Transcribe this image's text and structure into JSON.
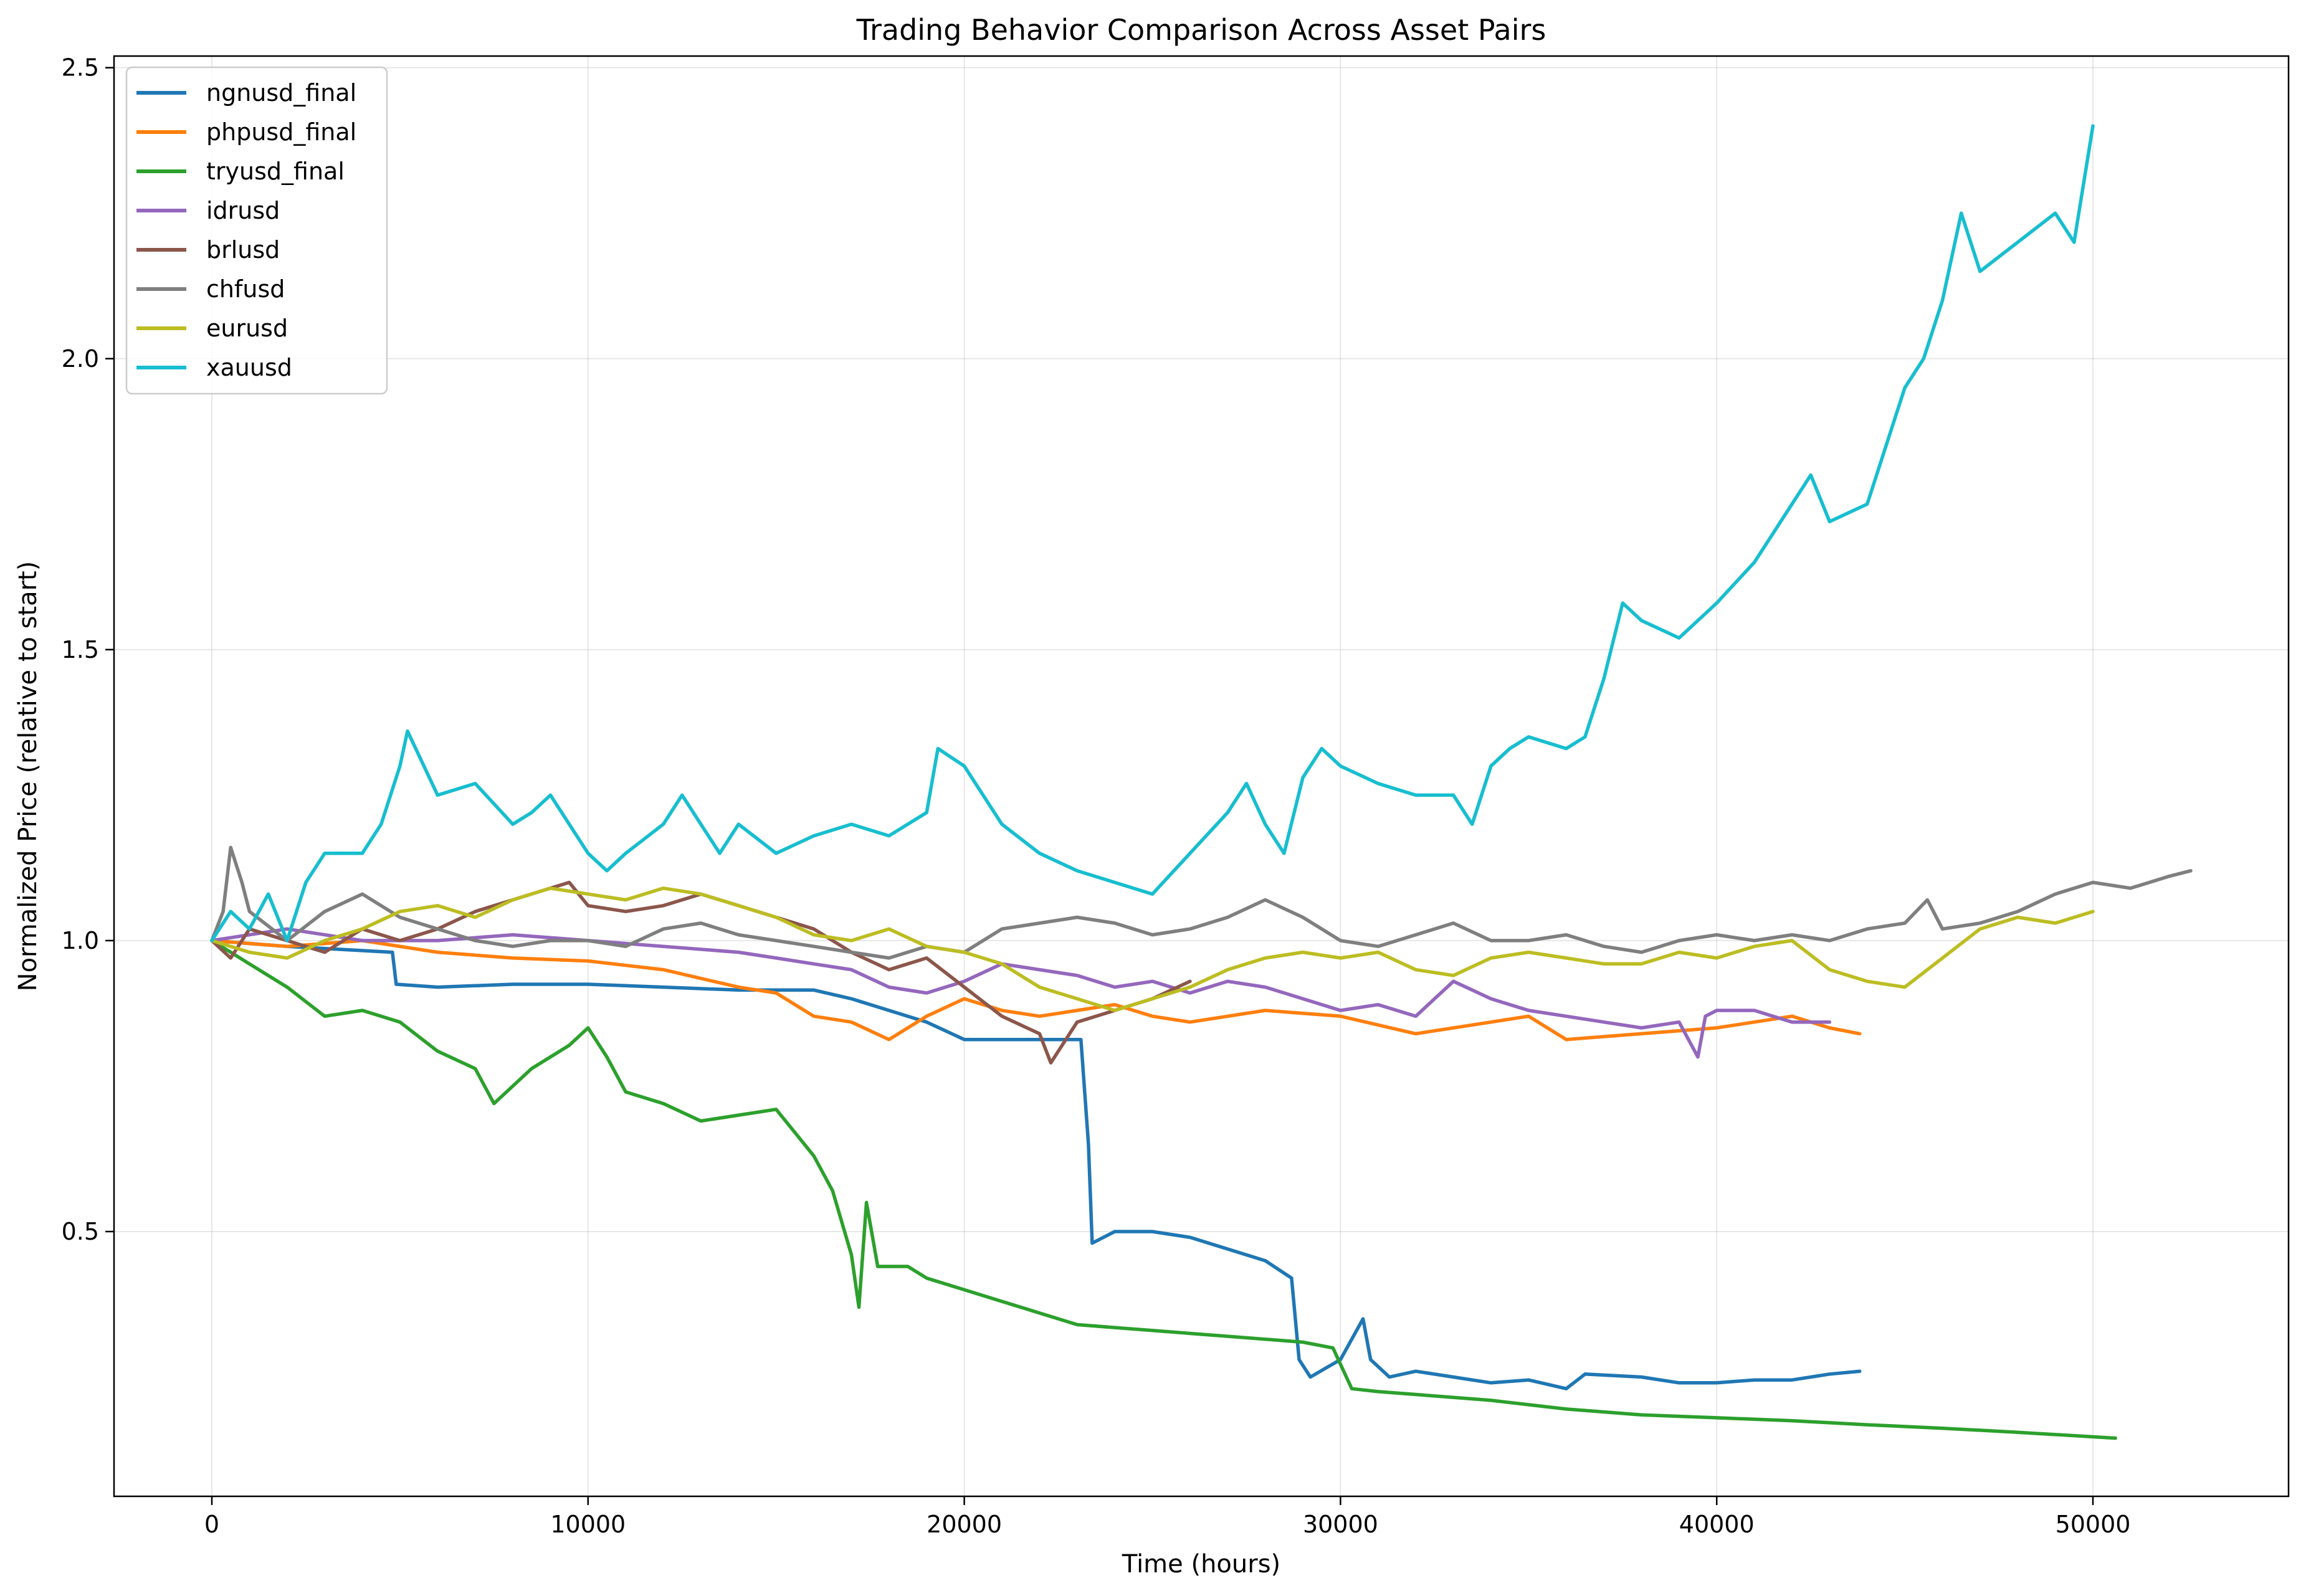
{
  "chart_data": {
    "type": "line",
    "title": "Trading Behavior Comparison Across Asset Pairs",
    "xlabel": "Time (hours)",
    "ylabel": "Normalized Price (relative to start)",
    "xlim": [
      -2600,
      55200
    ],
    "ylim": [
      0.045,
      2.52
    ],
    "xticks": [
      0,
      10000,
      20000,
      30000,
      40000,
      50000
    ],
    "xtick_labels": [
      "0",
      "10000",
      "20000",
      "30000",
      "40000",
      "50000"
    ],
    "yticks": [
      0.5,
      1.0,
      1.5,
      2.0,
      2.5
    ],
    "ytick_labels": [
      "0.5",
      "1.0",
      "1.5",
      "2.0",
      "2.5"
    ],
    "grid": true,
    "legend_position": "top-left",
    "series": [
      {
        "name": "ngnusd_final",
        "color": "#1f77b4",
        "x": [
          0,
          2000,
          4800,
          4900,
          6000,
          8000,
          10000,
          12000,
          14000,
          16000,
          17000,
          19000,
          20000,
          22000,
          23100,
          23300,
          23400,
          24000,
          25000,
          26000,
          27000,
          28000,
          28700,
          28900,
          29200,
          30000,
          30600,
          30800,
          31300,
          32000,
          33000,
          34000,
          35000,
          36000,
          36500,
          38000,
          39000,
          40000,
          41000,
          42000,
          43000,
          43800
        ],
        "y": [
          1.0,
          0.99,
          0.98,
          0.925,
          0.92,
          0.925,
          0.925,
          0.92,
          0.915,
          0.915,
          0.9,
          0.86,
          0.83,
          0.83,
          0.83,
          0.65,
          0.48,
          0.5,
          0.5,
          0.49,
          0.47,
          0.45,
          0.42,
          0.28,
          0.25,
          0.28,
          0.35,
          0.28,
          0.25,
          0.26,
          0.25,
          0.24,
          0.245,
          0.23,
          0.255,
          0.25,
          0.24,
          0.24,
          0.245,
          0.245,
          0.255,
          0.26
        ]
      },
      {
        "name": "phpusd_final",
        "color": "#ff7f0e",
        "x": [
          0,
          2000,
          4000,
          6000,
          8000,
          10000,
          12000,
          14000,
          15000,
          16000,
          17000,
          18000,
          19000,
          20000,
          21000,
          22000,
          23000,
          24000,
          25000,
          26000,
          28000,
          30000,
          32000,
          34000,
          35000,
          36000,
          38000,
          40000,
          41000,
          42000,
          43000,
          43800
        ],
        "y": [
          1.0,
          0.99,
          1.0,
          0.98,
          0.97,
          0.965,
          0.95,
          0.92,
          0.91,
          0.87,
          0.86,
          0.83,
          0.87,
          0.9,
          0.88,
          0.87,
          0.88,
          0.89,
          0.87,
          0.86,
          0.88,
          0.87,
          0.84,
          0.86,
          0.87,
          0.83,
          0.84,
          0.85,
          0.86,
          0.87,
          0.85,
          0.84
        ]
      },
      {
        "name": "tryusd_final",
        "color": "#2ca02c",
        "x": [
          0,
          1000,
          2000,
          3000,
          4000,
          5000,
          6000,
          7000,
          7500,
          8500,
          9500,
          10000,
          10500,
          11000,
          12000,
          13000,
          14000,
          15000,
          16000,
          16500,
          17000,
          17200,
          17400,
          17700,
          18500,
          19000,
          20000,
          21000,
          22000,
          23000,
          25000,
          27000,
          29000,
          29800,
          30300,
          31000,
          32000,
          34000,
          36000,
          38000,
          40000,
          42000,
          44000,
          46000,
          48000,
          50600
        ],
        "y": [
          1.0,
          0.96,
          0.92,
          0.87,
          0.88,
          0.86,
          0.81,
          0.78,
          0.72,
          0.78,
          0.82,
          0.85,
          0.8,
          0.74,
          0.72,
          0.69,
          0.7,
          0.71,
          0.63,
          0.57,
          0.46,
          0.37,
          0.55,
          0.44,
          0.44,
          0.42,
          0.4,
          0.38,
          0.36,
          0.34,
          0.33,
          0.32,
          0.31,
          0.3,
          0.23,
          0.225,
          0.22,
          0.21,
          0.195,
          0.185,
          0.18,
          0.175,
          0.168,
          0.162,
          0.155,
          0.145
        ]
      },
      {
        "name": "idrusd",
        "color": "#9467bd",
        "x": [
          0,
          2000,
          4000,
          6000,
          8000,
          10000,
          12000,
          14000,
          15000,
          16000,
          17000,
          18000,
          19000,
          20000,
          21000,
          22000,
          23000,
          24000,
          25000,
          26000,
          27000,
          28000,
          29000,
          30000,
          31000,
          32000,
          33000,
          34000,
          35000,
          36000,
          37000,
          38000,
          39000,
          39500,
          39700,
          40000,
          41000,
          42000,
          43000
        ],
        "y": [
          1.0,
          1.02,
          1.0,
          1.0,
          1.01,
          1.0,
          0.99,
          0.98,
          0.97,
          0.96,
          0.95,
          0.92,
          0.91,
          0.93,
          0.96,
          0.95,
          0.94,
          0.92,
          0.93,
          0.91,
          0.93,
          0.92,
          0.9,
          0.88,
          0.89,
          0.87,
          0.93,
          0.9,
          0.88,
          0.87,
          0.86,
          0.85,
          0.86,
          0.8,
          0.87,
          0.88,
          0.88,
          0.86,
          0.86
        ]
      },
      {
        "name": "brlusd",
        "color": "#8c564b",
        "x": [
          0,
          500,
          1000,
          2000,
          3000,
          4000,
          5000,
          6000,
          7000,
          8000,
          9000,
          9500,
          10000,
          11000,
          12000,
          13000,
          14000,
          15000,
          16000,
          17000,
          18000,
          19000,
          20000,
          21000,
          22000,
          22300,
          23000,
          24000,
          25000,
          26000
        ],
        "y": [
          1.0,
          0.97,
          1.02,
          1.0,
          0.98,
          1.02,
          1.0,
          1.02,
          1.05,
          1.07,
          1.09,
          1.1,
          1.06,
          1.05,
          1.06,
          1.08,
          1.06,
          1.04,
          1.02,
          0.98,
          0.95,
          0.97,
          0.92,
          0.87,
          0.84,
          0.79,
          0.86,
          0.88,
          0.9,
          0.93
        ]
      },
      {
        "name": "chfusd",
        "color": "#7f7f7f",
        "x": [
          0,
          300,
          500,
          800,
          1000,
          2000,
          3000,
          4000,
          5000,
          6000,
          7000,
          8000,
          9000,
          10000,
          11000,
          12000,
          13000,
          14000,
          15000,
          16000,
          17000,
          18000,
          19000,
          20000,
          21000,
          22000,
          23000,
          24000,
          25000,
          26000,
          27000,
          28000,
          29000,
          30000,
          31000,
          32000,
          33000,
          34000,
          35000,
          36000,
          37000,
          38000,
          39000,
          40000,
          41000,
          42000,
          43000,
          44000,
          45000,
          45600,
          46000,
          47000,
          48000,
          49000,
          50000,
          51000,
          52000,
          52600
        ],
        "y": [
          1.0,
          1.05,
          1.16,
          1.1,
          1.05,
          1.0,
          1.05,
          1.08,
          1.04,
          1.02,
          1.0,
          0.99,
          1.0,
          1.0,
          0.99,
          1.02,
          1.03,
          1.01,
          1.0,
          0.99,
          0.98,
          0.97,
          0.99,
          0.98,
          1.02,
          1.03,
          1.04,
          1.03,
          1.01,
          1.02,
          1.04,
          1.07,
          1.04,
          1.0,
          0.99,
          1.01,
          1.03,
          1.0,
          1.0,
          1.01,
          0.99,
          0.98,
          1.0,
          1.01,
          1.0,
          1.01,
          1.0,
          1.02,
          1.03,
          1.07,
          1.02,
          1.03,
          1.05,
          1.08,
          1.1,
          1.09,
          1.11,
          1.12
        ]
      },
      {
        "name": "eurusd",
        "color": "#bcbd22",
        "x": [
          0,
          1000,
          2000,
          3000,
          4000,
          5000,
          6000,
          7000,
          8000,
          9000,
          10000,
          11000,
          12000,
          13000,
          14000,
          15000,
          16000,
          17000,
          18000,
          19000,
          20000,
          21000,
          22000,
          23000,
          24000,
          25000,
          26000,
          27000,
          28000,
          29000,
          30000,
          31000,
          32000,
          33000,
          34000,
          35000,
          36000,
          37000,
          38000,
          39000,
          40000,
          41000,
          42000,
          43000,
          44000,
          45000,
          46000,
          47000,
          48000,
          49000,
          50000
        ],
        "y": [
          1.0,
          0.98,
          0.97,
          1.0,
          1.02,
          1.05,
          1.06,
          1.04,
          1.07,
          1.09,
          1.08,
          1.07,
          1.09,
          1.08,
          1.06,
          1.04,
          1.01,
          1.0,
          1.02,
          0.99,
          0.98,
          0.96,
          0.92,
          0.9,
          0.88,
          0.9,
          0.92,
          0.95,
          0.97,
          0.98,
          0.97,
          0.98,
          0.95,
          0.94,
          0.97,
          0.98,
          0.97,
          0.96,
          0.96,
          0.98,
          0.97,
          0.99,
          1.0,
          0.95,
          0.93,
          0.92,
          0.97,
          1.02,
          1.04,
          1.03,
          1.05
        ]
      },
      {
        "name": "xauusd",
        "color": "#17becf",
        "x": [
          0,
          500,
          1000,
          1500,
          2000,
          2500,
          3000,
          4000,
          4500,
          5000,
          5200,
          6000,
          7000,
          8000,
          8500,
          9000,
          10000,
          10500,
          11000,
          12000,
          12500,
          13000,
          13500,
          14000,
          15000,
          16000,
          17000,
          18000,
          19000,
          19300,
          20000,
          21000,
          22000,
          23000,
          24000,
          25000,
          26000,
          27000,
          27500,
          28000,
          28500,
          29000,
          29500,
          30000,
          31000,
          32000,
          33000,
          33500,
          34000,
          34500,
          35000,
          36000,
          36500,
          37000,
          37500,
          38000,
          39000,
          40000,
          41000,
          42000,
          42500,
          43000,
          44000,
          45000,
          45500,
          46000,
          46500,
          47000,
          48000,
          49000,
          49500,
          50000
        ],
        "y": [
          1.0,
          1.05,
          1.02,
          1.08,
          1.0,
          1.1,
          1.15,
          1.15,
          1.2,
          1.3,
          1.36,
          1.25,
          1.27,
          1.2,
          1.22,
          1.25,
          1.15,
          1.12,
          1.15,
          1.2,
          1.25,
          1.2,
          1.15,
          1.2,
          1.15,
          1.18,
          1.2,
          1.18,
          1.22,
          1.33,
          1.3,
          1.2,
          1.15,
          1.12,
          1.1,
          1.08,
          1.15,
          1.22,
          1.27,
          1.2,
          1.15,
          1.28,
          1.33,
          1.3,
          1.27,
          1.25,
          1.25,
          1.2,
          1.3,
          1.33,
          1.35,
          1.33,
          1.35,
          1.45,
          1.58,
          1.55,
          1.52,
          1.58,
          1.65,
          1.75,
          1.8,
          1.72,
          1.75,
          1.95,
          2.0,
          2.1,
          2.25,
          2.15,
          2.2,
          2.25,
          2.2,
          2.4
        ]
      }
    ]
  }
}
